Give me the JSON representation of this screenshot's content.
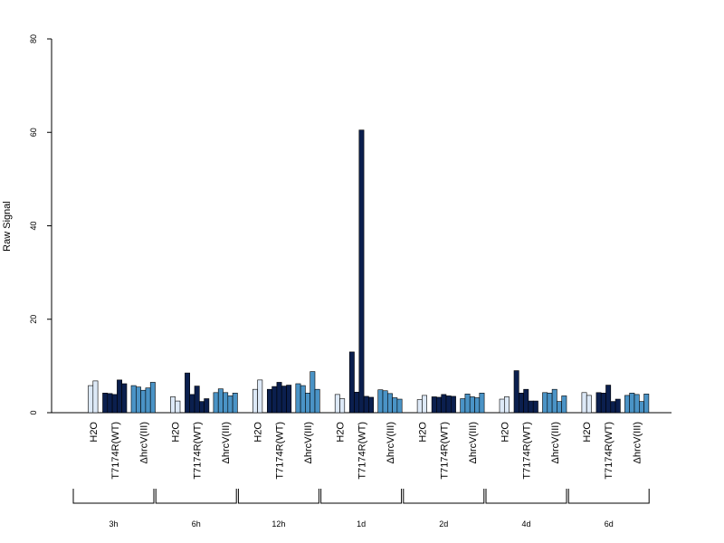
{
  "chart_data": {
    "type": "bar",
    "title": "",
    "ylabel": "Raw Signal",
    "xlabel": "",
    "ylim": [
      0,
      80
    ],
    "yticks": [
      0,
      20,
      40,
      60,
      80
    ],
    "grid": false,
    "colors": {
      "H2O": "#dde9f7",
      "T7174R(WT)": "#0b1f4e",
      "ΔhrcV(III)": "#4a93c6"
    },
    "groups": [
      {
        "time": "3h",
        "conditions": [
          {
            "name": "H2O",
            "values": [
              5.8,
              6.8
            ]
          },
          {
            "name": "T7174R(WT)",
            "values": [
              4.2,
              4.1,
              3.9,
              7.0,
              6.2
            ]
          },
          {
            "name": "ΔhrcV(III)",
            "values": [
              5.8,
              5.5,
              4.8,
              5.3,
              6.5
            ]
          }
        ]
      },
      {
        "time": "6h",
        "conditions": [
          {
            "name": "H2O",
            "values": [
              3.4,
              2.5
            ]
          },
          {
            "name": "T7174R(WT)",
            "values": [
              8.5,
              3.9,
              5.7,
              2.4,
              3.0
            ]
          },
          {
            "name": "ΔhrcV(III)",
            "values": [
              4.3,
              5.1,
              4.3,
              3.6,
              4.2
            ]
          }
        ]
      },
      {
        "time": "12h",
        "conditions": [
          {
            "name": "H2O",
            "values": [
              5.0,
              7.0
            ]
          },
          {
            "name": "T7174R(WT)",
            "values": [
              5.0,
              5.6,
              6.5,
              5.7,
              5.9
            ]
          },
          {
            "name": "ΔhrcV(III)",
            "values": [
              6.2,
              5.8,
              4.2,
              8.8,
              5.0
            ]
          }
        ]
      },
      {
        "time": "1d",
        "conditions": [
          {
            "name": "H2O",
            "values": [
              3.9,
              3.0
            ]
          },
          {
            "name": "T7174R(WT)",
            "values": [
              13.0,
              4.4,
              60.5,
              3.5,
              3.3
            ]
          },
          {
            "name": "ΔhrcV(III)",
            "values": [
              4.9,
              4.7,
              4.1,
              3.2,
              2.9
            ]
          }
        ]
      },
      {
        "time": "2d",
        "conditions": [
          {
            "name": "H2O",
            "values": [
              2.8,
              3.7
            ]
          },
          {
            "name": "T7174R(WT)",
            "values": [
              3.4,
              3.3,
              3.9,
              3.6,
              3.5
            ]
          },
          {
            "name": "ΔhrcV(III)",
            "values": [
              3.0,
              4.0,
              3.4,
              3.2,
              4.2
            ]
          }
        ]
      },
      {
        "time": "4d",
        "conditions": [
          {
            "name": "H2O",
            "values": [
              2.9,
              3.4
            ]
          },
          {
            "name": "T7174R(WT)",
            "values": [
              9.0,
              4.2,
              5.0,
              2.5,
              2.5
            ]
          },
          {
            "name": "ΔhrcV(III)",
            "values": [
              4.3,
              4.2,
              5.0,
              2.4,
              3.6
            ]
          }
        ]
      },
      {
        "time": "6d",
        "conditions": [
          {
            "name": "H2O",
            "values": [
              4.3,
              3.7
            ]
          },
          {
            "name": "T7174R(WT)",
            "values": [
              4.3,
              4.2,
              5.9,
              2.4,
              2.9
            ]
          },
          {
            "name": "ΔhrcV(III)",
            "values": [
              3.7,
              4.2,
              3.9,
              2.4,
              4.0
            ]
          }
        ]
      }
    ]
  }
}
